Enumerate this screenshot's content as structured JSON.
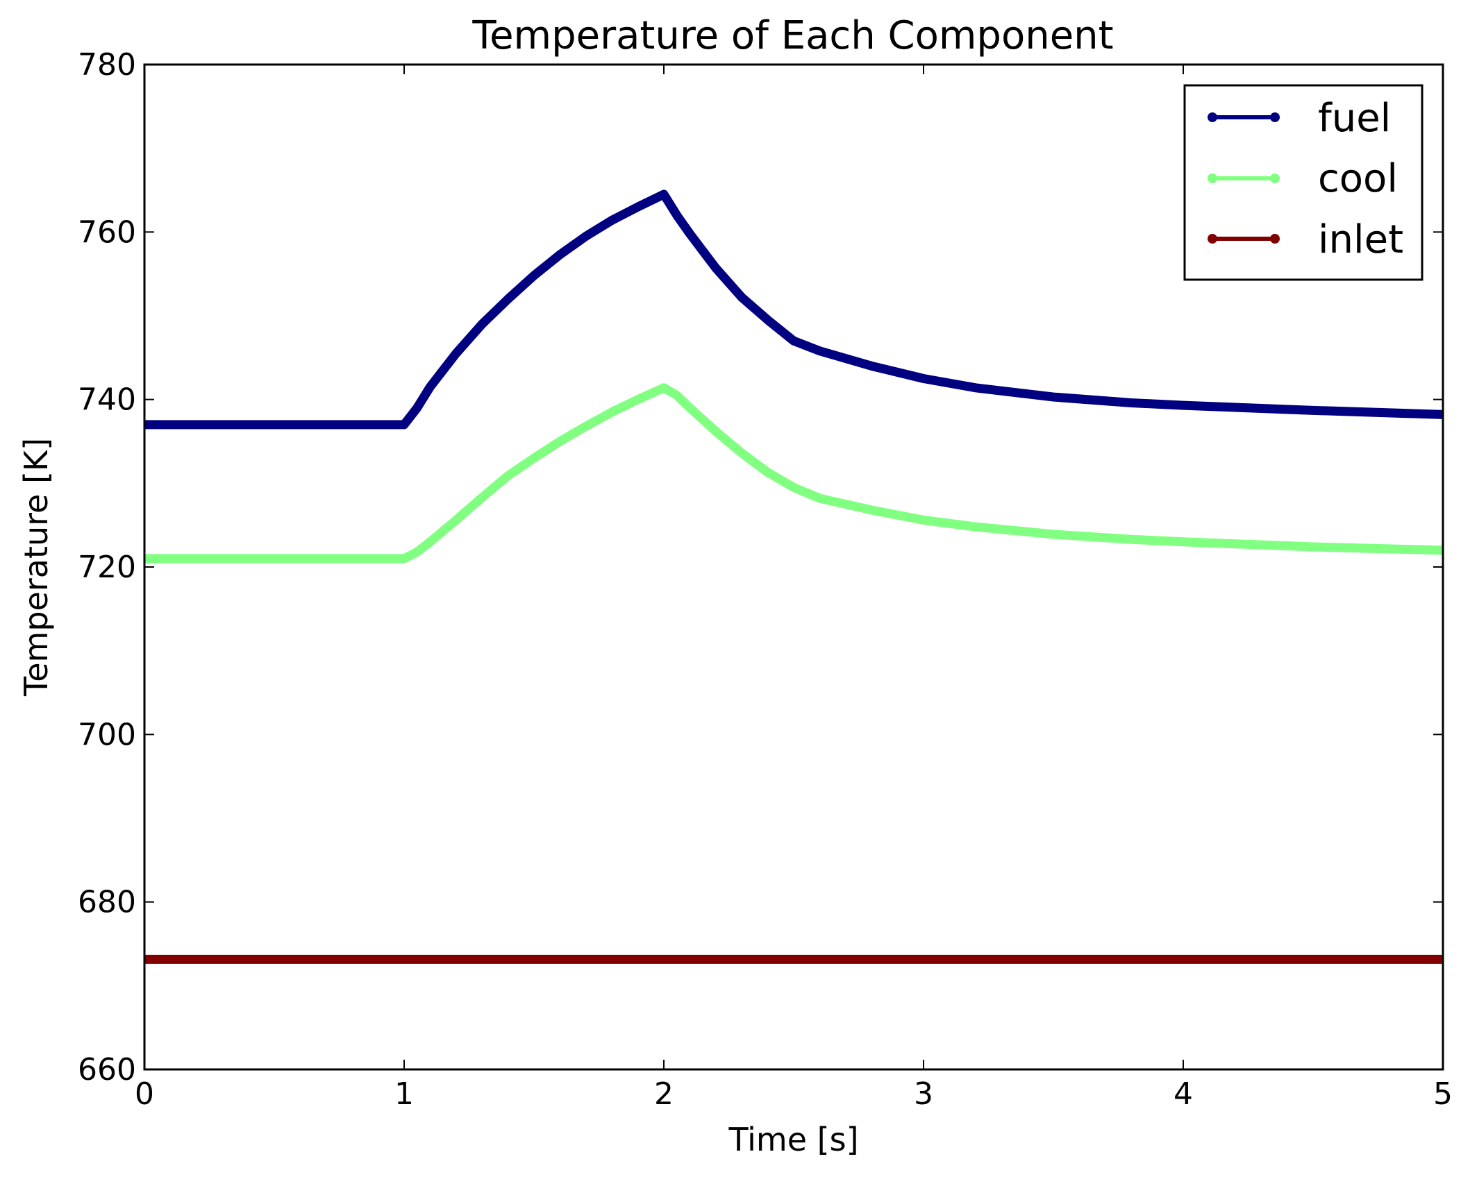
{
  "chart_data": {
    "type": "line",
    "title": "Temperature of Each Component",
    "xlabel": "Time [s]",
    "ylabel": "Temperature [K]",
    "xlim": [
      0,
      5
    ],
    "ylim": [
      660,
      780
    ],
    "xticks": [
      0,
      1,
      2,
      3,
      4,
      5
    ],
    "yticks": [
      660,
      680,
      700,
      720,
      740,
      760,
      780
    ],
    "xtick_labels": [
      "0",
      "1",
      "2",
      "3",
      "4",
      "5"
    ],
    "ytick_labels": [
      "660",
      "680",
      "700",
      "720",
      "740",
      "760",
      "780"
    ],
    "grid": false,
    "legend_position": "top-right",
    "series": [
      {
        "name": "fuel",
        "color": "#000080",
        "x": [
          0,
          0.5,
          1.0,
          1.05,
          1.1,
          1.2,
          1.3,
          1.4,
          1.5,
          1.6,
          1.7,
          1.8,
          1.9,
          2.0,
          2.05,
          2.1,
          2.2,
          2.3,
          2.4,
          2.5,
          2.6,
          2.8,
          3.0,
          3.2,
          3.5,
          3.8,
          4.0,
          4.5,
          5.0
        ],
        "y": [
          737.0,
          737.0,
          737.0,
          739.0,
          741.5,
          745.5,
          749.0,
          752.0,
          754.8,
          757.3,
          759.5,
          761.4,
          763.0,
          764.5,
          762.0,
          759.8,
          755.7,
          752.2,
          749.5,
          747.0,
          745.8,
          744.0,
          742.5,
          741.4,
          740.3,
          739.6,
          739.3,
          738.7,
          738.2
        ]
      },
      {
        "name": "cool",
        "color": "#80ff80",
        "x": [
          0,
          0.5,
          1.0,
          1.05,
          1.1,
          1.2,
          1.3,
          1.4,
          1.5,
          1.6,
          1.7,
          1.8,
          1.9,
          2.0,
          2.05,
          2.1,
          2.2,
          2.3,
          2.4,
          2.5,
          2.6,
          2.8,
          3.0,
          3.2,
          3.5,
          3.8,
          4.0,
          4.5,
          5.0
        ],
        "y": [
          721.0,
          721.0,
          721.0,
          721.8,
          723.0,
          725.6,
          728.3,
          730.9,
          733.0,
          735.0,
          736.8,
          738.5,
          740.0,
          741.4,
          740.5,
          739.0,
          736.2,
          733.6,
          731.3,
          729.5,
          728.2,
          726.8,
          725.6,
          724.8,
          723.9,
          723.3,
          723.0,
          722.4,
          722.0
        ]
      },
      {
        "name": "inlet",
        "color": "#800000",
        "x": [
          0,
          5
        ],
        "y": [
          673.15,
          673.15
        ]
      }
    ]
  }
}
